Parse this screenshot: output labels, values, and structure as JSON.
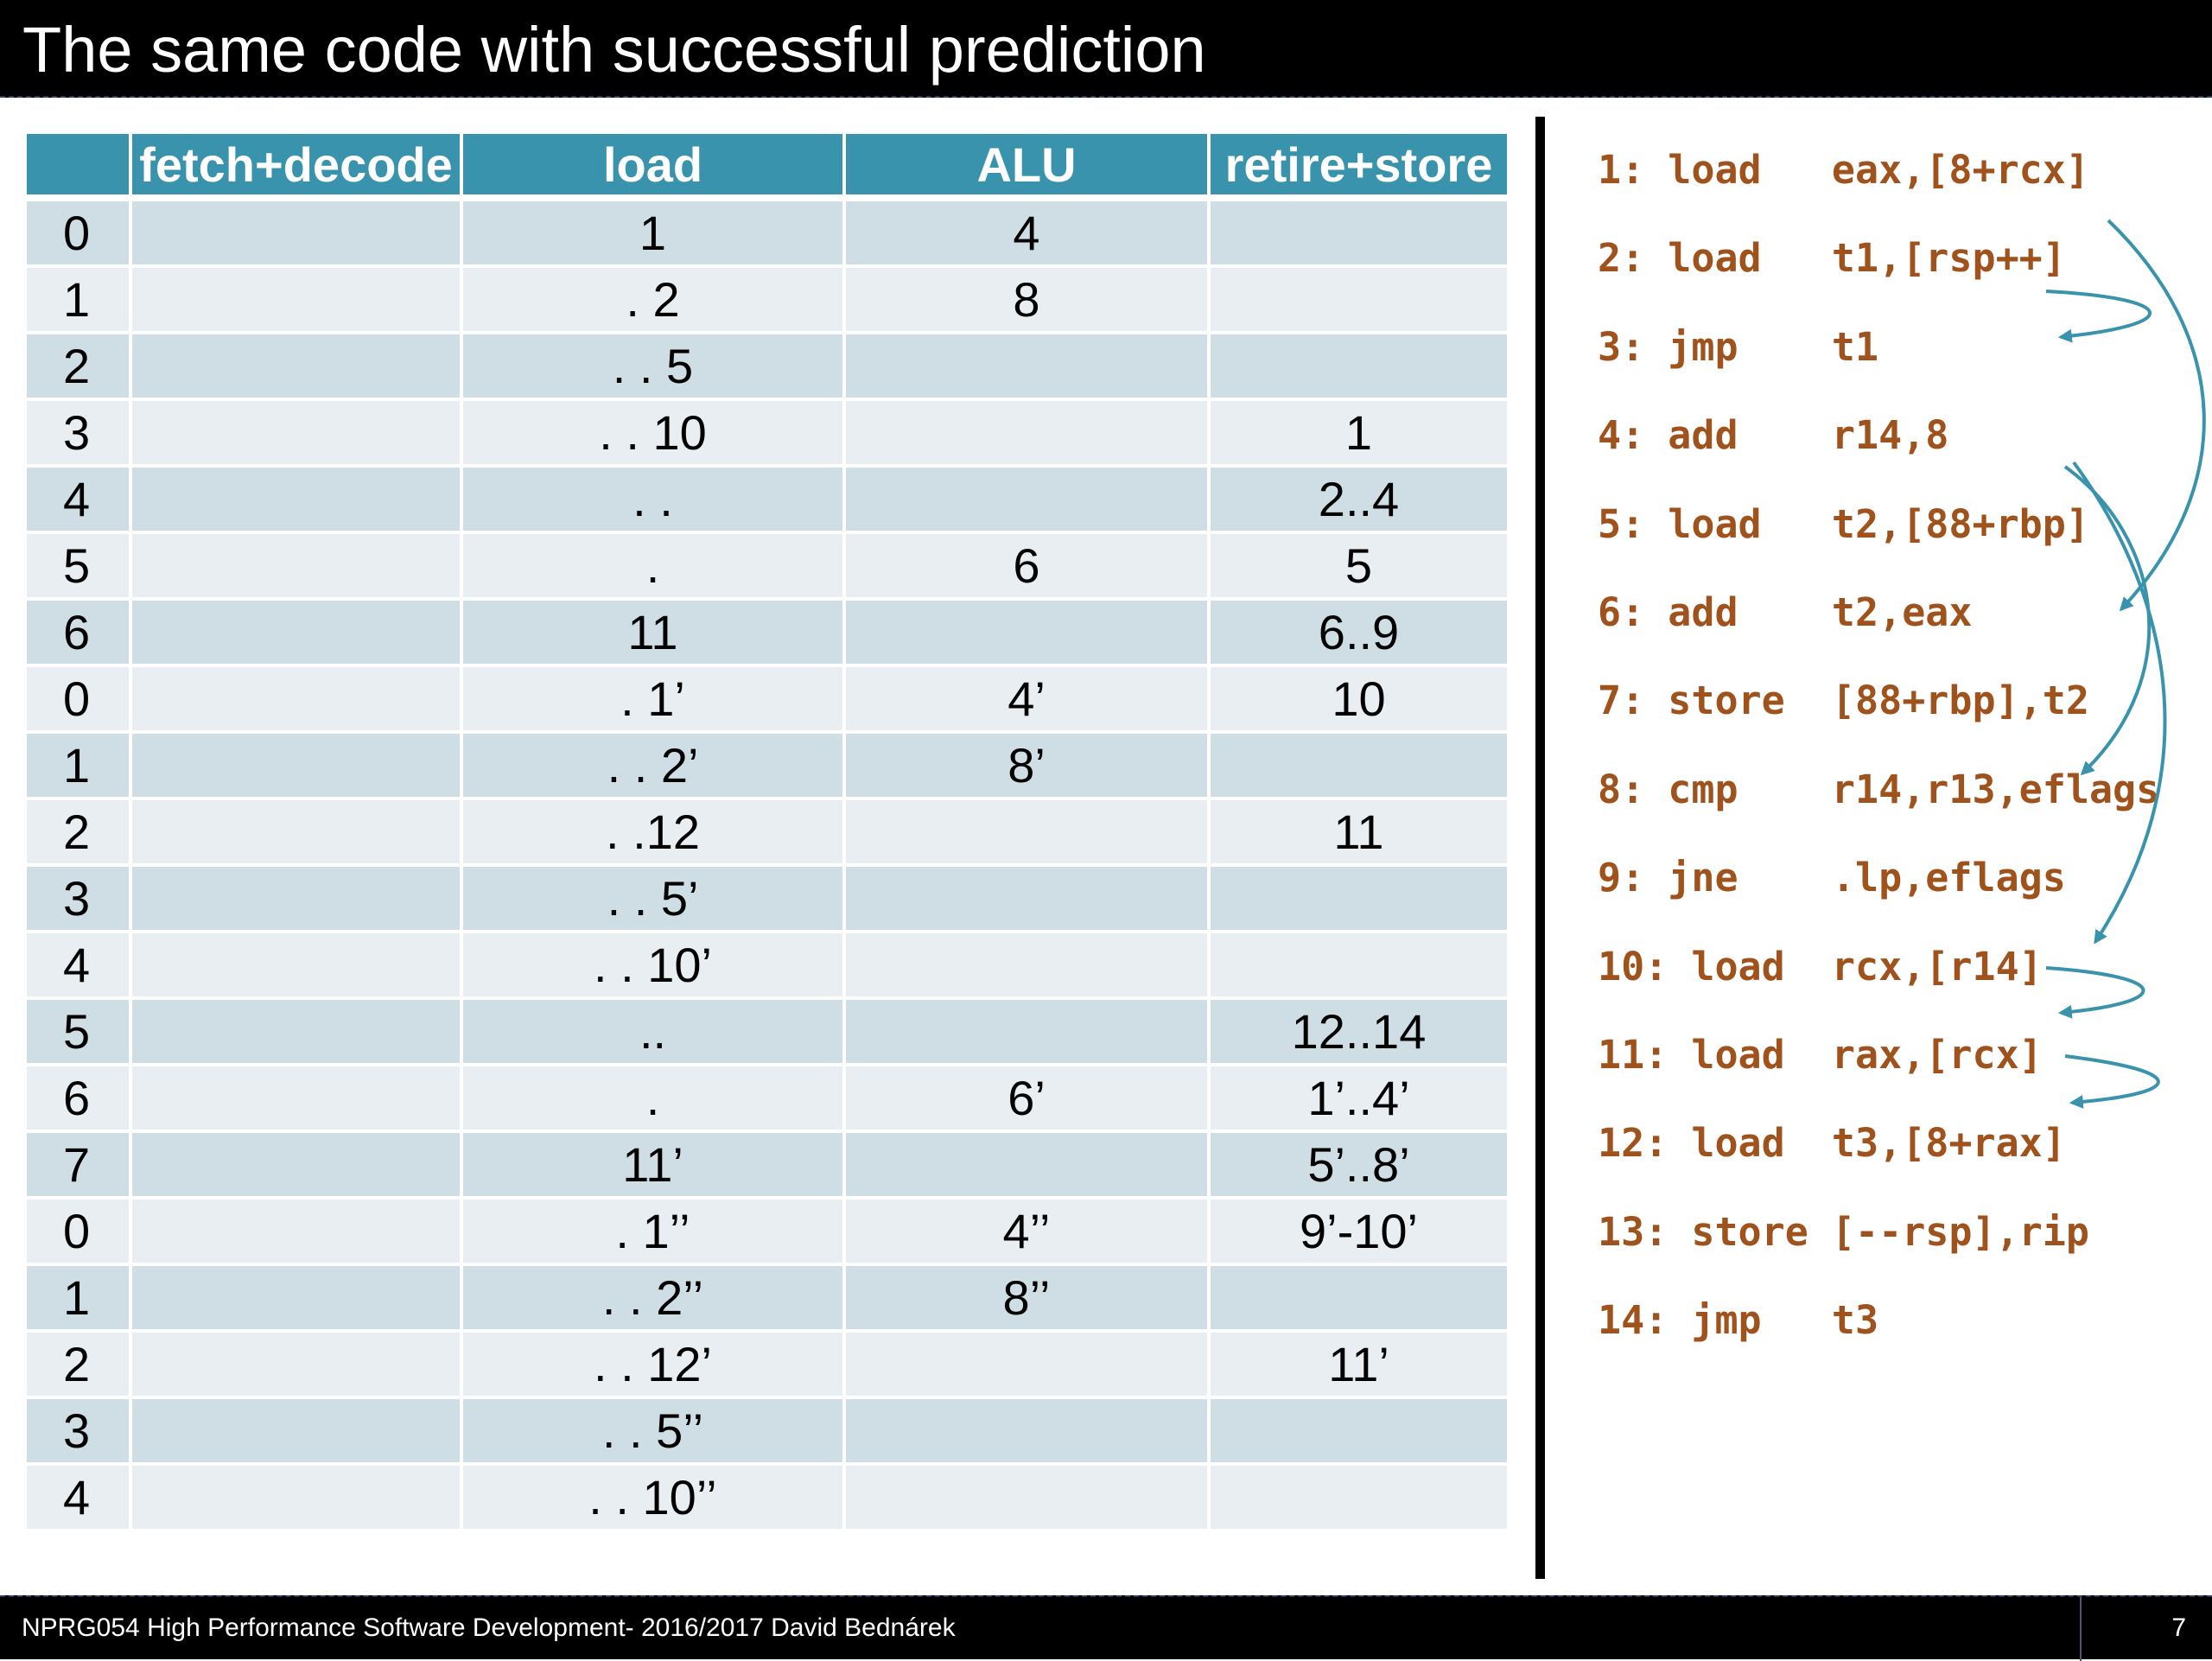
{
  "slide": {
    "title": "The same code with successful prediction"
  },
  "table": {
    "headers": [
      "",
      "fetch+decode",
      "load",
      "ALU",
      "retire+store"
    ],
    "rows": [
      [
        "0",
        "",
        "1",
        "4",
        ""
      ],
      [
        "1",
        "",
        ". 2",
        "8",
        ""
      ],
      [
        "2",
        "",
        ". . 5",
        "",
        ""
      ],
      [
        "3",
        "",
        ". . 10",
        "",
        "1"
      ],
      [
        "4",
        "",
        ". .",
        "",
        "2..4"
      ],
      [
        "5",
        "",
        ".",
        "6",
        "5"
      ],
      [
        "6",
        "",
        "11",
        "",
        "6..9"
      ],
      [
        "0",
        "",
        ". 1’",
        "4’",
        "10"
      ],
      [
        "1",
        "",
        ". . 2’",
        "8’",
        ""
      ],
      [
        "2",
        "",
        ". .12",
        "",
        "11"
      ],
      [
        "3",
        "",
        ". . 5’",
        "",
        ""
      ],
      [
        "4",
        "",
        ". . 10’",
        "",
        ""
      ],
      [
        "5",
        "",
        "..",
        "",
        "12..14"
      ],
      [
        "6",
        "",
        ".",
        "6’",
        "1’..4’"
      ],
      [
        "7",
        "",
        "11’",
        "",
        "5’..8’"
      ],
      [
        "0",
        "",
        ". 1’’",
        "4’’",
        "9’-10’"
      ],
      [
        "1",
        "",
        ". . 2’’",
        "8’’",
        ""
      ],
      [
        "2",
        "",
        ". . 12’",
        "",
        "11’"
      ],
      [
        "3",
        "",
        ". . 5’’",
        "",
        ""
      ],
      [
        "4",
        "",
        ". . 10’’",
        "",
        ""
      ]
    ]
  },
  "code": [
    "1: load   eax,[8+rcx]",
    "2: load   t1,[rsp++]",
    "3: jmp    t1",
    "4: add    r14,8",
    "5: load   t2,[88+rbp]",
    "6: add    t2,eax",
    "7: store  [88+rbp],t2",
    "8: cmp    r14,r13,eflags",
    "9: jne    .lp,eflags",
    "10: load  rcx,[r14]",
    "11: load  rax,[rcx]",
    "12: load  t3,[8+rax]",
    "13: store [--rsp],rip",
    "14: jmp   t3"
  ],
  "colors": {
    "title_bar": "#000000",
    "table_header": "#3a93ad",
    "row_dark": "#cfdee4",
    "row_light": "#e8eef1",
    "code_text": "#a0521c",
    "arrow": "#3a93ad"
  },
  "footer": {
    "text": "NPRG054 High Performance Software Development- 2016/2017 David Bednárek",
    "page": "7"
  }
}
